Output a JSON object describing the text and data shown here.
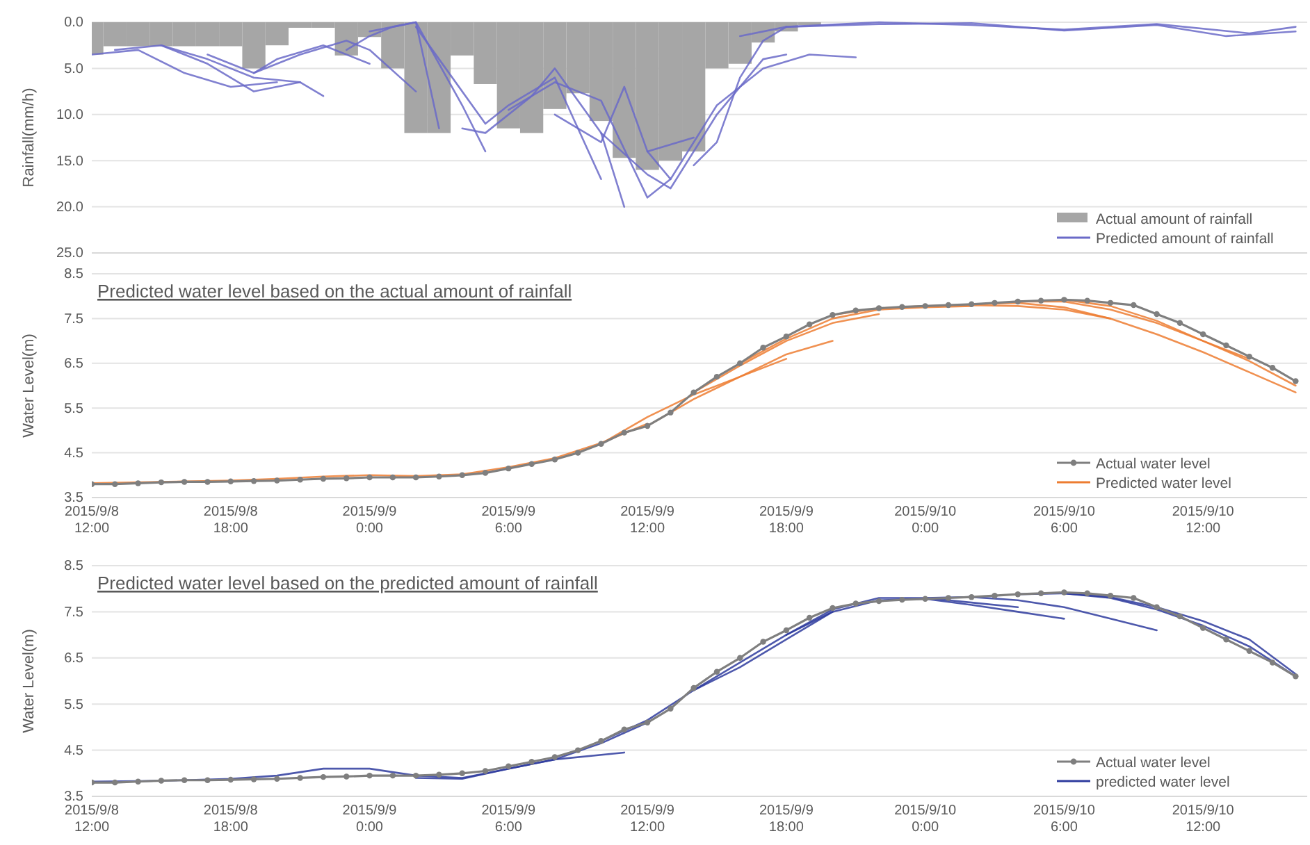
{
  "chart_data": [
    {
      "type": "bar",
      "ylabel": "Rainfall(mm/h)",
      "ylim": [
        25,
        0
      ],
      "yticks": [
        {
          "value": 0,
          "label": "0.0"
        },
        {
          "value": 5,
          "label": "5.0"
        },
        {
          "value": 10,
          "label": "10.0"
        },
        {
          "value": 15,
          "label": "15.0"
        },
        {
          "value": 20,
          "label": "20.0"
        },
        {
          "value": 25,
          "label": "25.0"
        }
      ],
      "xlim": [
        "2015-09-08T12:00",
        "2015-09-10T16:30"
      ],
      "tick_labels": "y",
      "grid": "y",
      "legend": "bottom right",
      "x": [
        "2015-09-08T12:00",
        "2015-09-08T13:00",
        "2015-09-08T14:00",
        "2015-09-08T15:00",
        "2015-09-08T16:00",
        "2015-09-08T17:00",
        "2015-09-08T18:00",
        "2015-09-08T19:00",
        "2015-09-08T20:00",
        "2015-09-08T21:00",
        "2015-09-08T22:00",
        "2015-09-08T23:00",
        "2015-09-09T00:00",
        "2015-09-09T01:00",
        "2015-09-09T02:00",
        "2015-09-09T03:00",
        "2015-09-09T04:00",
        "2015-09-09T05:00",
        "2015-09-09T06:00",
        "2015-09-09T07:00",
        "2015-09-09T08:00",
        "2015-09-09T09:00",
        "2015-09-09T10:00",
        "2015-09-09T11:00",
        "2015-09-09T12:00",
        "2015-09-09T13:00",
        "2015-09-09T14:00",
        "2015-09-09T15:00",
        "2015-09-09T16:00",
        "2015-09-09T17:00",
        "2015-09-09T18:00",
        "2015-09-09T19:00"
      ],
      "series": [
        {
          "name": "Actual amount of rainfall",
          "color": "#a6a6a6",
          "values": [
            3.5,
            2.6,
            2.6,
            2.6,
            2.6,
            2.6,
            2.6,
            5.0,
            2.5,
            0.6,
            0.6,
            3.6,
            1.6,
            5.0,
            12.0,
            12.0,
            3.6,
            6.7,
            11.5,
            12.0,
            9.4,
            7.7,
            10.7,
            14.7,
            16.0,
            15.0,
            14.0,
            5.0,
            4.5,
            2.2,
            1.0,
            0.3
          ]
        },
        {
          "type": "line",
          "name": "Predicted amount of rainfall",
          "color": "#6a6ac8",
          "x": [
            "2015-09-08T12:00",
            "2015-09-08T14:00",
            "2015-09-08T16:00",
            "2015-09-08T18:00",
            "2015-09-08T20:00"
          ],
          "values": [
            3.5,
            3.0,
            5.5,
            7.0,
            6.5
          ]
        },
        {
          "type": "line",
          "color": "#6a6ac8",
          "x": [
            "2015-09-08T13:00",
            "2015-09-08T15:00",
            "2015-09-08T17:00",
            "2015-09-08T19:00",
            "2015-09-08T21:00"
          ],
          "values": [
            3.0,
            2.5,
            4.5,
            7.5,
            6.5
          ]
        },
        {
          "type": "line",
          "color": "#6a6ac8",
          "x": [
            "2015-09-08T15:00",
            "2015-09-08T17:00",
            "2015-09-08T19:00",
            "2015-09-08T21:00",
            "2015-09-08T22:00"
          ],
          "values": [
            2.5,
            4.0,
            6.0,
            6.5,
            8.0
          ]
        },
        {
          "type": "line",
          "color": "#6a6ac8",
          "x": [
            "2015-09-08T17:00",
            "2015-09-08T19:00",
            "2015-09-08T20:00",
            "2015-09-08T22:00",
            "2015-09-09T00:00"
          ],
          "values": [
            3.5,
            5.5,
            4.0,
            2.5,
            4.5
          ]
        },
        {
          "type": "line",
          "color": "#6a6ac8",
          "x": [
            "2015-09-08T19:00",
            "2015-09-08T21:00",
            "2015-09-08T23:00",
            "2015-09-09T00:00",
            "2015-09-09T02:00"
          ],
          "values": [
            5.5,
            3.5,
            2.0,
            3.0,
            7.5
          ]
        },
        {
          "type": "line",
          "color": "#6a6ac8",
          "x": [
            "2015-09-08T23:00",
            "2015-09-09T00:00",
            "2015-09-09T01:00",
            "2015-09-09T02:00",
            "2015-09-09T03:00"
          ],
          "values": [
            3.0,
            1.5,
            0.5,
            0.0,
            11.5
          ]
        },
        {
          "type": "line",
          "color": "#6a6ac8",
          "x": [
            "2015-09-09T00:00",
            "2015-09-09T01:00",
            "2015-09-09T02:00",
            "2015-09-09T04:00",
            "2015-09-09T05:00"
          ],
          "values": [
            1.0,
            0.5,
            0.0,
            9.0,
            14.0
          ]
        },
        {
          "type": "line",
          "color": "#6a6ac8",
          "x": [
            "2015-09-09T02:00",
            "2015-09-09T03:00",
            "2015-09-09T05:00",
            "2015-09-09T06:00",
            "2015-09-09T08:00",
            "2015-09-09T10:00"
          ],
          "values": [
            0.5,
            4.0,
            11.0,
            9.0,
            6.0,
            17.0
          ]
        },
        {
          "type": "line",
          "color": "#6a6ac8",
          "x": [
            "2015-09-09T04:00",
            "2015-09-09T05:00",
            "2015-09-09T07:00",
            "2015-09-09T08:00",
            "2015-09-09T10:00",
            "2015-09-09T11:00"
          ],
          "values": [
            11.5,
            12.0,
            8.0,
            5.0,
            12.0,
            20.0
          ]
        },
        {
          "type": "line",
          "color": "#6a6ac8",
          "x": [
            "2015-09-09T06:00",
            "2015-09-09T08:00",
            "2015-09-09T10:00",
            "2015-09-09T12:00",
            "2015-09-09T13:00"
          ],
          "values": [
            9.5,
            6.5,
            8.5,
            19.0,
            17.0
          ]
        },
        {
          "type": "line",
          "color": "#6a6ac8",
          "x": [
            "2015-09-09T08:00",
            "2015-09-09T10:00",
            "2015-09-09T11:00",
            "2015-09-09T12:00",
            "2015-09-09T14:00"
          ],
          "values": [
            10.0,
            13.0,
            7.0,
            14.0,
            12.5
          ]
        },
        {
          "type": "line",
          "color": "#6a6ac8",
          "x": [
            "2015-09-09T10:00",
            "2015-09-09T12:00",
            "2015-09-09T13:00",
            "2015-09-09T15:00",
            "2015-09-09T17:00",
            "2015-09-09T18:00"
          ],
          "values": [
            12.0,
            16.5,
            18.0,
            10.0,
            4.0,
            3.5
          ]
        },
        {
          "type": "line",
          "color": "#6a6ac8",
          "x": [
            "2015-09-09T12:00",
            "2015-09-09T13:00",
            "2015-09-09T15:00",
            "2015-09-09T17:00",
            "2015-09-09T19:00",
            "2015-09-09T21:00"
          ],
          "values": [
            14.0,
            17.0,
            9.0,
            5.0,
            3.5,
            3.8
          ]
        },
        {
          "type": "line",
          "color": "#6a6ac8",
          "x": [
            "2015-09-09T14:00",
            "2015-09-09T15:00",
            "2015-09-09T16:00",
            "2015-09-09T17:00",
            "2015-09-09T18:00"
          ],
          "values": [
            15.5,
            13.0,
            6.0,
            2.0,
            0.5
          ]
        },
        {
          "type": "line",
          "color": "#6a6ac8",
          "x": [
            "2015-09-09T16:00",
            "2015-09-09T18:00",
            "2015-09-09T22:00",
            "2015-09-10T02:00",
            "2015-09-10T06:00",
            "2015-09-10T10:00",
            "2015-09-10T14:00",
            "2015-09-10T16:00"
          ],
          "values": [
            1.5,
            0.5,
            0.0,
            0.3,
            0.8,
            0.2,
            1.2,
            0.5
          ]
        },
        {
          "type": "line",
          "color": "#6a6ac8",
          "x": [
            "2015-09-09T18:00",
            "2015-09-09T22:00",
            "2015-09-10T02:00",
            "2015-09-10T06:00",
            "2015-09-10T10:00",
            "2015-09-10T13:00",
            "2015-09-10T16:00"
          ],
          "values": [
            0.5,
            0.2,
            0.1,
            0.9,
            0.3,
            1.5,
            1.0
          ]
        }
      ]
    },
    {
      "type": "line",
      "title": "Predicted water level based on the actual amount of rainfall",
      "ylabel": "Water Level(m)",
      "ylim": [
        3.5,
        8.5
      ],
      "yticks": [
        3.5,
        4.5,
        5.5,
        6.5,
        7.5,
        8.5
      ],
      "xlim": [
        "2015-09-08T12:00",
        "2015-09-10T16:30"
      ],
      "xticks": [
        {
          "value": "2015-09-08T12:00",
          "label": "2015/9/8 12:00"
        },
        {
          "value": "2015-09-08T18:00",
          "label": "2015/9/8 18:00"
        },
        {
          "value": "2015-09-09T00:00",
          "label": "2015/9/9 0:00"
        },
        {
          "value": "2015-09-09T06:00",
          "label": "2015/9/9 6:00"
        },
        {
          "value": "2015-09-09T12:00",
          "label": "2015/9/9 12:00"
        },
        {
          "value": "2015-09-09T18:00",
          "label": "2015/9/9 18:00"
        },
        {
          "value": "2015-09-10T00:00",
          "label": "2015/9/10 0:00"
        },
        {
          "value": "2015-09-10T06:00",
          "label": "2015/9/10 6:00"
        },
        {
          "value": "2015-09-10T12:00",
          "label": "2015/9/10 12:00"
        }
      ],
      "grid": "y",
      "legend": "bottom right",
      "x": [
        "2015-09-08T12:00",
        "2015-09-08T13:00",
        "2015-09-08T14:00",
        "2015-09-08T15:00",
        "2015-09-08T16:00",
        "2015-09-08T17:00",
        "2015-09-08T18:00",
        "2015-09-08T19:00",
        "2015-09-08T20:00",
        "2015-09-08T21:00",
        "2015-09-08T22:00",
        "2015-09-08T23:00",
        "2015-09-09T00:00",
        "2015-09-09T01:00",
        "2015-09-09T02:00",
        "2015-09-09T03:00",
        "2015-09-09T04:00",
        "2015-09-09T05:00",
        "2015-09-09T06:00",
        "2015-09-09T07:00",
        "2015-09-09T08:00",
        "2015-09-09T09:00",
        "2015-09-09T10:00",
        "2015-09-09T11:00",
        "2015-09-09T12:00",
        "2015-09-09T13:00",
        "2015-09-09T14:00",
        "2015-09-09T15:00",
        "2015-09-09T16:00",
        "2015-09-09T17:00",
        "2015-09-09T18:00",
        "2015-09-09T19:00",
        "2015-09-09T20:00",
        "2015-09-09T21:00",
        "2015-09-09T22:00",
        "2015-09-09T23:00",
        "2015-09-10T00:00",
        "2015-09-10T01:00",
        "2015-09-10T02:00",
        "2015-09-10T03:00",
        "2015-09-10T04:00",
        "2015-09-10T05:00",
        "2015-09-10T06:00",
        "2015-09-10T07:00",
        "2015-09-10T08:00",
        "2015-09-10T09:00",
        "2015-09-10T10:00",
        "2015-09-10T11:00",
        "2015-09-10T12:00",
        "2015-09-10T13:00",
        "2015-09-10T14:00",
        "2015-09-10T15:00",
        "2015-09-10T16:00"
      ],
      "series": [
        {
          "name": "Actual water level",
          "color": "#7f7f7f",
          "marker": "circle",
          "values": [
            3.8,
            3.8,
            3.82,
            3.84,
            3.85,
            3.85,
            3.86,
            3.87,
            3.88,
            3.9,
            3.92,
            3.93,
            3.95,
            3.95,
            3.95,
            3.97,
            4.0,
            4.05,
            4.15,
            4.25,
            4.35,
            4.5,
            4.7,
            4.95,
            5.1,
            5.4,
            5.85,
            6.2,
            6.5,
            6.85,
            7.1,
            7.37,
            7.58,
            7.68,
            7.73,
            7.76,
            7.78,
            7.8,
            7.82,
            7.85,
            7.88,
            7.9,
            7.92,
            7.9,
            7.85,
            7.8,
            7.6,
            7.4,
            7.15,
            6.9,
            6.65,
            6.4,
            6.1
          ]
        },
        {
          "name": "Predicted water level",
          "color": "#ed7d31",
          "x": [
            "2015-09-08T12:00",
            "2015-09-08T14:00",
            "2015-09-08T16:00",
            "2015-09-08T18:00",
            "2015-09-08T20:00",
            "2015-09-08T22:00",
            "2015-09-09T00:00",
            "2015-09-09T02:00",
            "2015-09-09T04:00",
            "2015-09-09T06:00",
            "2015-09-09T08:00",
            "2015-09-09T10:00",
            "2015-09-09T12:00"
          ],
          "values": [
            3.82,
            3.84,
            3.86,
            3.88,
            3.92,
            3.97,
            4.0,
            3.98,
            4.02,
            4.18,
            4.38,
            4.72,
            5.15
          ]
        },
        {
          "color": "#ed7d31",
          "x": [
            "2015-09-09T10:00",
            "2015-09-09T12:00",
            "2015-09-09T14:00",
            "2015-09-09T16:00",
            "2015-09-09T18:00"
          ],
          "values": [
            4.7,
            5.3,
            5.8,
            6.2,
            6.6
          ]
        },
        {
          "color": "#ed7d31",
          "x": [
            "2015-09-09T12:00",
            "2015-09-09T14:00",
            "2015-09-09T16:00",
            "2015-09-09T18:00",
            "2015-09-09T20:00"
          ],
          "values": [
            5.1,
            5.7,
            6.2,
            6.7,
            7.0
          ]
        },
        {
          "color": "#ed7d31",
          "x": [
            "2015-09-09T14:00",
            "2015-09-09T16:00",
            "2015-09-09T18:00",
            "2015-09-09T20:00",
            "2015-09-09T22:00"
          ],
          "values": [
            5.85,
            6.45,
            7.0,
            7.4,
            7.6
          ]
        },
        {
          "color": "#ed7d31",
          "x": [
            "2015-09-09T16:00",
            "2015-09-09T18:00",
            "2015-09-09T20:00",
            "2015-09-09T22:00",
            "2015-09-10T00:00",
            "2015-09-10T02:00"
          ],
          "values": [
            6.5,
            7.05,
            7.5,
            7.7,
            7.75,
            7.78
          ]
        },
        {
          "color": "#ed7d31",
          "x": [
            "2015-09-09T20:00",
            "2015-09-09T22:00",
            "2015-09-10T00:00",
            "2015-09-10T02:00",
            "2015-09-10T04:00",
            "2015-09-10T06:00",
            "2015-09-10T08:00"
          ],
          "values": [
            7.58,
            7.73,
            7.78,
            7.8,
            7.78,
            7.7,
            7.5
          ]
        },
        {
          "color": "#ed7d31",
          "x": [
            "2015-09-10T02:00",
            "2015-09-10T04:00",
            "2015-09-10T06:00",
            "2015-09-10T08:00",
            "2015-09-10T10:00",
            "2015-09-10T12:00",
            "2015-09-10T14:00",
            "2015-09-10T16:00"
          ],
          "values": [
            7.82,
            7.85,
            7.75,
            7.5,
            7.15,
            6.75,
            6.3,
            5.85
          ]
        },
        {
          "color": "#ed7d31",
          "x": [
            "2015-09-10T04:00",
            "2015-09-10T06:00",
            "2015-09-10T08:00",
            "2015-09-10T10:00",
            "2015-09-10T12:00",
            "2015-09-10T14:00",
            "2015-09-10T16:00"
          ],
          "values": [
            7.88,
            7.88,
            7.7,
            7.4,
            7.0,
            6.55,
            6.0
          ]
        },
        {
          "color": "#ed7d31",
          "x": [
            "2015-09-10T06:00",
            "2015-09-10T08:00",
            "2015-09-10T10:00",
            "2015-09-10T12:00",
            "2015-09-10T14:00"
          ],
          "values": [
            7.92,
            7.78,
            7.45,
            7.0,
            6.6
          ]
        }
      ]
    },
    {
      "type": "line",
      "title": "Predicted water level based on the predicted amount of rainfall",
      "ylabel": "Water Level(m)",
      "ylim": [
        3.5,
        8.5
      ],
      "yticks": [
        3.5,
        4.5,
        5.5,
        6.5,
        7.5,
        8.5
      ],
      "xlim": [
        "2015-09-08T12:00",
        "2015-09-10T16:30"
      ],
      "xticks": [
        {
          "value": "2015-09-08T12:00",
          "label": "2015/9/8 12:00"
        },
        {
          "value": "2015-09-08T18:00",
          "label": "2015/9/8 18:00"
        },
        {
          "value": "2015-09-09T00:00",
          "label": "2015/9/9 0:00"
        },
        {
          "value": "2015-09-09T06:00",
          "label": "2015/9/9 6:00"
        },
        {
          "value": "2015-09-09T12:00",
          "label": "2015/9/9 12:00"
        },
        {
          "value": "2015-09-09T18:00",
          "label": "2015/9/9 18:00"
        },
        {
          "value": "2015-09-10T00:00",
          "label": "2015/9/10 0:00"
        },
        {
          "value": "2015-09-10T06:00",
          "label": "2015/9/10 6:00"
        },
        {
          "value": "2015-09-10T12:00",
          "label": "2015/9/10 12:00"
        }
      ],
      "grid": "y",
      "legend": "bottom right",
      "x": [
        "2015-09-08T12:00",
        "2015-09-08T13:00",
        "2015-09-08T14:00",
        "2015-09-08T15:00",
        "2015-09-08T16:00",
        "2015-09-08T17:00",
        "2015-09-08T18:00",
        "2015-09-08T19:00",
        "2015-09-08T20:00",
        "2015-09-08T21:00",
        "2015-09-08T22:00",
        "2015-09-08T23:00",
        "2015-09-09T00:00",
        "2015-09-09T01:00",
        "2015-09-09T02:00",
        "2015-09-09T03:00",
        "2015-09-09T04:00",
        "2015-09-09T05:00",
        "2015-09-09T06:00",
        "2015-09-09T07:00",
        "2015-09-09T08:00",
        "2015-09-09T09:00",
        "2015-09-09T10:00",
        "2015-09-09T11:00",
        "2015-09-09T12:00",
        "2015-09-09T13:00",
        "2015-09-09T14:00",
        "2015-09-09T15:00",
        "2015-09-09T16:00",
        "2015-09-09T17:00",
        "2015-09-09T18:00",
        "2015-09-09T19:00",
        "2015-09-09T20:00",
        "2015-09-09T21:00",
        "2015-09-09T22:00",
        "2015-09-09T23:00",
        "2015-09-10T00:00",
        "2015-09-10T01:00",
        "2015-09-10T02:00",
        "2015-09-10T03:00",
        "2015-09-10T04:00",
        "2015-09-10T05:00",
        "2015-09-10T06:00",
        "2015-09-10T07:00",
        "2015-09-10T08:00",
        "2015-09-10T09:00",
        "2015-09-10T10:00",
        "2015-09-10T11:00",
        "2015-09-10T12:00",
        "2015-09-10T13:00",
        "2015-09-10T14:00",
        "2015-09-10T15:00",
        "2015-09-10T16:00"
      ],
      "series": [
        {
          "name": "Actual water level",
          "color": "#7f7f7f",
          "marker": "circle",
          "values": [
            3.8,
            3.8,
            3.82,
            3.84,
            3.85,
            3.85,
            3.86,
            3.87,
            3.88,
            3.9,
            3.92,
            3.93,
            3.95,
            3.95,
            3.95,
            3.97,
            4.0,
            4.05,
            4.15,
            4.25,
            4.35,
            4.5,
            4.7,
            4.95,
            5.1,
            5.4,
            5.85,
            6.2,
            6.5,
            6.85,
            7.1,
            7.37,
            7.58,
            7.68,
            7.73,
            7.76,
            7.78,
            7.8,
            7.82,
            7.85,
            7.88,
            7.9,
            7.92,
            7.9,
            7.85,
            7.8,
            7.6,
            7.4,
            7.15,
            6.9,
            6.65,
            6.4,
            6.1
          ]
        },
        {
          "name": "predicted water level",
          "color": "#2e3b9e",
          "x": [
            "2015-09-08T12:00",
            "2015-09-08T14:00",
            "2015-09-08T16:00",
            "2015-09-08T18:00",
            "2015-09-08T20:00",
            "2015-09-08T22:00",
            "2015-09-09T00:00",
            "2015-09-09T02:00",
            "2015-09-09T04:00",
            "2015-09-09T06:00",
            "2015-09-09T08:00",
            "2015-09-09T10:00",
            "2015-09-09T12:00"
          ],
          "values": [
            3.82,
            3.83,
            3.85,
            3.88,
            3.95,
            4.1,
            4.1,
            3.95,
            3.9,
            4.1,
            4.3,
            4.65,
            5.1
          ]
        },
        {
          "color": "#2e3b9e",
          "x": [
            "2015-09-09T02:00",
            "2015-09-09T04:00",
            "2015-09-09T06:00",
            "2015-09-09T08:00",
            "2015-09-09T11:00"
          ],
          "values": [
            3.9,
            3.88,
            4.1,
            4.3,
            4.45
          ]
        },
        {
          "color": "#2e3b9e",
          "x": [
            "2015-09-09T10:00",
            "2015-09-09T12:00",
            "2015-09-09T14:00",
            "2015-09-09T16:00",
            "2015-09-09T18:00",
            "2015-09-09T20:00"
          ],
          "values": [
            4.7,
            5.15,
            5.8,
            6.4,
            7.0,
            7.5
          ]
        },
        {
          "color": "#2e3b9e",
          "x": [
            "2015-09-09T14:00",
            "2015-09-09T16:00",
            "2015-09-09T18:00",
            "2015-09-09T20:00",
            "2015-09-09T22:00"
          ],
          "values": [
            5.8,
            6.3,
            6.9,
            7.5,
            7.75
          ]
        },
        {
          "color": "#2e3b9e",
          "x": [
            "2015-09-09T18:00",
            "2015-09-09T20:00",
            "2015-09-09T22:00",
            "2015-09-10T00:00",
            "2015-09-10T02:00",
            "2015-09-10T04:00"
          ],
          "values": [
            7.0,
            7.55,
            7.8,
            7.8,
            7.7,
            7.6
          ]
        },
        {
          "color": "#2e3b9e",
          "x": [
            "2015-09-09T22:00",
            "2015-09-10T00:00",
            "2015-09-10T02:00",
            "2015-09-10T04:00",
            "2015-09-10T06:00"
          ],
          "values": [
            7.75,
            7.78,
            7.65,
            7.5,
            7.35
          ]
        },
        {
          "color": "#2e3b9e",
          "x": [
            "2015-09-10T00:00",
            "2015-09-10T02:00",
            "2015-09-10T04:00",
            "2015-09-10T06:00",
            "2015-09-10T08:00",
            "2015-09-10T10:00"
          ],
          "values": [
            7.8,
            7.82,
            7.75,
            7.6,
            7.35,
            7.1
          ]
        },
        {
          "color": "#2e3b9e",
          "x": [
            "2015-09-10T04:00",
            "2015-09-10T06:00",
            "2015-09-10T08:00",
            "2015-09-10T10:00",
            "2015-09-10T12:00",
            "2015-09-10T14:00",
            "2015-09-10T16:00"
          ],
          "values": [
            7.88,
            7.9,
            7.8,
            7.55,
            7.2,
            6.75,
            6.1
          ]
        },
        {
          "color": "#2e3b9e",
          "x": [
            "2015-09-10T06:00",
            "2015-09-10T08:00",
            "2015-09-10T10:00",
            "2015-09-10T12:00",
            "2015-09-10T14:00",
            "2015-09-10T16:00"
          ],
          "values": [
            7.9,
            7.82,
            7.6,
            7.3,
            6.9,
            6.15
          ]
        }
      ]
    }
  ]
}
